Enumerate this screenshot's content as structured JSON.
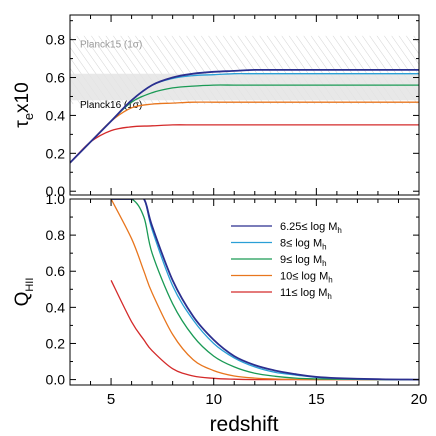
{
  "chart_data": [
    {
      "type": "line",
      "xlabel": "redshift",
      "ylabel_base": "τ",
      "ylabel_sub": "e",
      "ylabel_suffix": "x10",
      "xlim": [
        3,
        20
      ],
      "ylim": [
        -0.02,
        0.93
      ],
      "yticks": [
        "0.0",
        "0.2",
        "0.4",
        "0.6",
        "0.8"
      ],
      "grid": false,
      "bands": [
        {
          "label": "Planck15 (1σ)",
          "ymin": 0.46,
          "ymax": 0.82,
          "style": "hatch"
        },
        {
          "label": "Planck16 (1σ)",
          "ymin": 0.48,
          "ymax": 0.62,
          "style": "shaded"
        }
      ],
      "x": [
        3,
        4,
        5,
        6,
        7,
        8,
        9,
        10,
        11,
        12,
        14,
        16,
        18,
        20
      ],
      "series": [
        {
          "name": "6.25≤ log M_h",
          "color": "#2b2f8f",
          "values": [
            0.15,
            0.26,
            0.37,
            0.48,
            0.56,
            0.6,
            0.62,
            0.63,
            0.635,
            0.64,
            0.64,
            0.64,
            0.64,
            0.64
          ]
        },
        {
          "name": "8≤ log M_h",
          "color": "#2a9fd6",
          "values": [
            0.15,
            0.26,
            0.37,
            0.48,
            0.56,
            0.595,
            0.61,
            0.615,
            0.62,
            0.62,
            0.62,
            0.62,
            0.62,
            0.62
          ]
        },
        {
          "name": "9≤ log M_h",
          "color": "#1a9a55",
          "values": [
            0.15,
            0.26,
            0.37,
            0.47,
            0.52,
            0.545,
            0.555,
            0.56,
            0.56,
            0.56,
            0.56,
            0.56,
            0.56,
            0.56
          ]
        },
        {
          "name": "10≤ log M_h",
          "color": "#e8761e",
          "values": [
            0.15,
            0.26,
            0.37,
            0.44,
            0.46,
            0.465,
            0.47,
            0.47,
            0.47,
            0.47,
            0.47,
            0.47,
            0.47,
            0.47
          ]
        },
        {
          "name": "11≤ log M_h",
          "color": "#d42a2a",
          "values": [
            0.15,
            0.26,
            0.32,
            0.34,
            0.345,
            0.35,
            0.35,
            0.35,
            0.35,
            0.35,
            0.35,
            0.35,
            0.35,
            0.35
          ]
        }
      ]
    },
    {
      "type": "line",
      "xlabel": "redshift",
      "ylabel_base": "Q",
      "ylabel_sub": "HII",
      "xlim": [
        3,
        20
      ],
      "ylim": [
        -0.03,
        1.0
      ],
      "xticks": [
        "5",
        "10",
        "15",
        "20"
      ],
      "yticks": [
        "0.0",
        "0.2",
        "0.4",
        "0.6",
        "0.8",
        "1.0"
      ],
      "grid": false,
      "legend": "top-right",
      "x": [
        5,
        6,
        6.6,
        7,
        8,
        9,
        10,
        11,
        12,
        13,
        14,
        15,
        16,
        18,
        20
      ],
      "series": [
        {
          "name": "6.25≤ log M_h",
          "color": "#2b2f8f",
          "values": [
            1,
            1,
            1,
            0.85,
            0.55,
            0.35,
            0.22,
            0.13,
            0.08,
            0.05,
            0.03,
            0.015,
            0.008,
            0.002,
            0
          ]
        },
        {
          "name": "8≤ log M_h",
          "color": "#2a9fd6",
          "values": [
            1,
            1,
            1,
            0.83,
            0.52,
            0.33,
            0.2,
            0.12,
            0.07,
            0.04,
            0.025,
            0.012,
            0.006,
            0.001,
            0
          ]
        },
        {
          "name": "9≤ log M_h",
          "color": "#1a9a55",
          "values": [
            1,
            1,
            0.9,
            0.7,
            0.42,
            0.24,
            0.13,
            0.07,
            0.035,
            0.018,
            0.008,
            0.004,
            0.002,
            0,
            0
          ]
        },
        {
          "name": "10≤ log M_h",
          "color": "#e8761e",
          "values": [
            1,
            0.78,
            0.6,
            0.48,
            0.25,
            0.11,
            0.05,
            0.02,
            0.008,
            0.003,
            0.001,
            0,
            0,
            0,
            0
          ]
        },
        {
          "name": "11≤ log M_h",
          "color": "#d42a2a",
          "values": [
            0.55,
            0.32,
            0.22,
            0.16,
            0.06,
            0.02,
            0.007,
            0.002,
            0,
            0,
            0,
            0,
            0,
            0,
            0
          ]
        }
      ]
    }
  ]
}
